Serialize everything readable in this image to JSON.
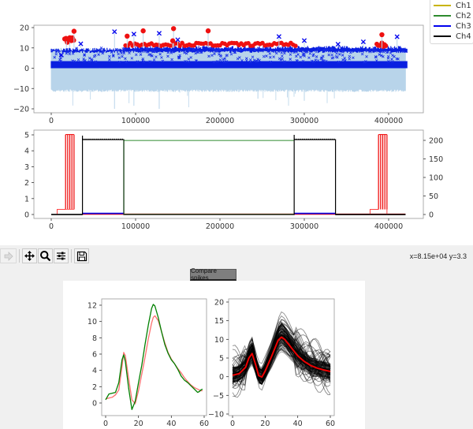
{
  "legend": {
    "items": [
      {
        "label": "Ch1",
        "color": "#c8b400"
      },
      {
        "label": "Ch2",
        "color": "#2e8b2e"
      },
      {
        "label": "Ch3",
        "color": "#0000ee"
      },
      {
        "label": "Ch4",
        "color": "#000000"
      }
    ]
  },
  "toolbar": {
    "buttons": [
      {
        "name": "forward",
        "icon": "forward-arrow-icon",
        "enabled": false
      },
      {
        "name": "pan",
        "icon": "move-arrows-icon",
        "enabled": true
      },
      {
        "name": "zoom",
        "icon": "magnifier-icon",
        "enabled": true
      },
      {
        "name": "configure-subplots",
        "icon": "sliders-icon",
        "enabled": true
      },
      {
        "name": "save",
        "icon": "floppy-disk-icon",
        "enabled": true
      }
    ],
    "coords": "x=8.15e+04 y=3.3"
  },
  "compare_button": {
    "label": "Compare spikes"
  },
  "chart_data": [
    {
      "type": "scatter",
      "title": "",
      "description": "Raw signal (light blue) with detected spike markers: blue x markers and red circles",
      "xlabel": "",
      "ylabel": "",
      "xlim": [
        -20000,
        440000
      ],
      "ylim": [
        -22,
        22
      ],
      "xticks": [
        "0",
        "100000",
        "200000",
        "300000",
        "400000"
      ],
      "yticks": [
        "-20",
        "-10",
        "0",
        "10",
        "20"
      ],
      "series": [
        {
          "name": "signal",
          "color": "#b8d4ea",
          "range_y": [
            -11,
            10
          ],
          "x_extent": [
            0,
            420000
          ]
        },
        {
          "name": "blue-x-spikes",
          "color": "#0000ee",
          "marker": "x",
          "points": [
            [
              75000,
              18
            ],
            [
              98000,
              16.8
            ],
            [
              128000,
              17.2
            ],
            [
              150000,
              14
            ],
            [
              270000,
              15.6
            ],
            [
              300000,
              13.6
            ],
            [
              340000,
              11.8
            ],
            [
              370000,
              13
            ],
            [
              410000,
              15.5
            ],
            [
              12000,
              6.5
            ],
            [
              35000,
              12
            ]
          ]
        },
        {
          "name": "red-circle-spikes",
          "color": "#ee0000",
          "marker": "o",
          "points": [
            [
              27000,
              18.2
            ],
            [
              90000,
              15.8
            ],
            [
              109000,
              18.4
            ],
            [
              145000,
              19.5
            ],
            [
              186000,
              18.4
            ],
            [
              144000,
              13.5
            ],
            [
              392000,
              16.5
            ],
            [
              18000,
              14.5
            ],
            [
              22000,
              14
            ]
          ]
        }
      ]
    },
    {
      "type": "line",
      "title": "",
      "xlim": [
        -20000,
        440000
      ],
      "ylim_left": [
        -0.2,
        5.1
      ],
      "ylim_right": [
        -10,
        216
      ],
      "xticks": [
        "0",
        "100000",
        "200000",
        "300000",
        "400000"
      ],
      "yticks_left": [
        "0",
        "1",
        "2",
        "3",
        "4",
        "5"
      ],
      "yticks_right": [
        "0",
        "50",
        "100",
        "150",
        "200"
      ],
      "legend": [
        "Ch1",
        "Ch2",
        "Ch3",
        "Ch4"
      ],
      "series": [
        {
          "name": "Ch4",
          "color": "#000000",
          "segments": [
            [
              [
                0,
                0
              ],
              [
                37000,
                0
              ],
              [
                37000,
                4.95
              ],
              [
                37000,
                4.7
              ],
              [
                86000,
                4.7
              ],
              [
                86000,
                0
              ],
              [
                288000,
                0
              ],
              [
                288000,
                5.0
              ],
              [
                288000,
                4.7
              ],
              [
                337000,
                4.7
              ],
              [
                337000,
                0
              ],
              [
                420000,
                0
              ]
            ]
          ]
        },
        {
          "name": "Ch2",
          "color": "#2e8b2e",
          "segments": [
            [
              [
                86000,
                4.65
              ],
              [
                288000,
                4.65
              ]
            ]
          ]
        },
        {
          "name": "Ch3",
          "color": "#0000ee",
          "segments": [
            [
              [
                37000,
                0.07
              ],
              [
                86000,
                0.07
              ]
            ],
            [
              [
                288000,
                0.07
              ],
              [
                337000,
                0.07
              ]
            ]
          ]
        },
        {
          "name": "red-pulses",
          "color": "#ee0000",
          "segments": [
            [
              [
                7000,
                0
              ],
              [
                7000,
                0.32
              ],
              [
                17000,
                0.32
              ],
              [
                17000,
                5.05
              ]
            ],
            [
              [
                378000,
                0
              ],
              [
                378000,
                0.32
              ],
              [
                388000,
                0.32
              ],
              [
                388000,
                5.05
              ],
              [
                398000,
                5.05
              ],
              [
                398000,
                0
              ]
            ]
          ]
        }
      ]
    },
    {
      "type": "line",
      "title": "",
      "xlim": [
        -3,
        62
      ],
      "ylim": [
        -1.5,
        12.8
      ],
      "xticks": [
        "0",
        "20",
        "40",
        "60"
      ],
      "yticks": [
        "0",
        "2",
        "4",
        "6",
        "8",
        "10",
        "12"
      ],
      "series": [
        {
          "name": "green-waveform",
          "color": "#008000",
          "x": [
            0,
            2,
            4,
            6,
            8,
            10,
            11,
            12,
            14,
            16,
            18,
            20,
            22,
            24,
            26,
            28,
            29,
            30,
            32,
            34,
            36,
            38,
            40,
            42,
            44,
            46,
            48,
            50,
            52,
            54,
            56,
            57,
            58,
            59
          ],
          "y": [
            0.4,
            1.1,
            1.2,
            1.3,
            2.5,
            5.3,
            5.9,
            5.1,
            1.8,
            -0.8,
            0.2,
            2.5,
            4.6,
            7.2,
            9.6,
            11.6,
            12.1,
            11.9,
            10.5,
            8.8,
            7.2,
            6.1,
            5.3,
            4.8,
            4.1,
            3.3,
            2.8,
            2.5,
            2.1,
            1.7,
            1.3,
            1.4,
            1.6,
            1.7
          ]
        },
        {
          "name": "red-waveform",
          "color": "#ff7070",
          "x": [
            0,
            2,
            4,
            6,
            8,
            10,
            11,
            12,
            14,
            16,
            18,
            20,
            22,
            24,
            26,
            28,
            29,
            30,
            32,
            34,
            36,
            38,
            40,
            42,
            44,
            46,
            48,
            50,
            52,
            54,
            56,
            58,
            59
          ],
          "y": [
            0.5,
            0.6,
            0.7,
            1.0,
            1.6,
            4.5,
            6.2,
            5.8,
            3.0,
            0.4,
            -0.1,
            1.5,
            3.5,
            5.6,
            7.9,
            9.8,
            10.5,
            10.7,
            10.1,
            8.8,
            7.4,
            6.2,
            5.4,
            4.8,
            4.2,
            3.7,
            3.1,
            2.6,
            2.2,
            1.9,
            1.7,
            1.5,
            1.5
          ]
        }
      ]
    },
    {
      "type": "line",
      "title": "",
      "description": "Overlay of many individual spike waveforms (black, semi-transparent) with mean waveform (red)",
      "xlim": [
        -1,
        61
      ],
      "ylim": [
        -10,
        20.5
      ],
      "xticks": [
        "0",
        "20",
        "40",
        "60"
      ],
      "yticks": [
        "-10",
        "-5",
        "0",
        "5",
        "10",
        "15",
        "20"
      ],
      "series": [
        {
          "name": "mean-waveform",
          "color": "#ee0000",
          "x": [
            0,
            4,
            8,
            10,
            12,
            14,
            16,
            18,
            20,
            24,
            28,
            30,
            32,
            36,
            40,
            44,
            48,
            52,
            56,
            60
          ],
          "y": [
            0.4,
            0.8,
            2.5,
            5.0,
            6.2,
            3.5,
            0.3,
            -0.1,
            1.5,
            5.5,
            9.8,
            10.6,
            10.0,
            7.8,
            5.6,
            4.1,
            3.0,
            2.3,
            1.8,
            1.4
          ]
        },
        {
          "name": "individual-spikes",
          "color": "#000000",
          "alpha": 0.4,
          "range_y": [
            -9,
            19.5
          ]
        }
      ]
    }
  ]
}
